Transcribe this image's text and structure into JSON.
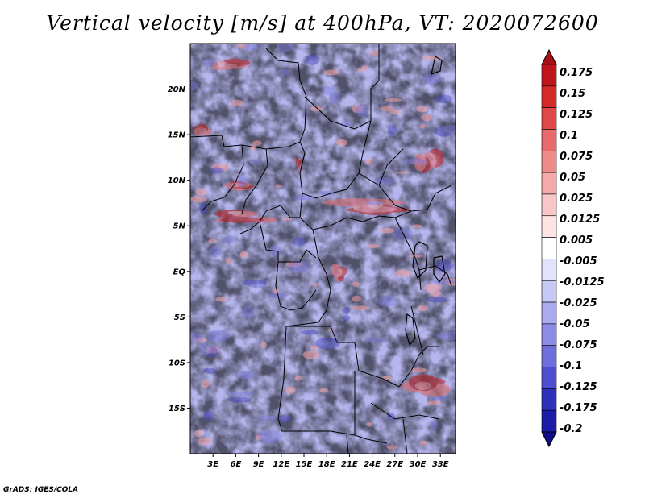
{
  "title": "Vertical velocity [m/s] at 400hPa, VT: 2020072600",
  "credit": "GrADS: IGES/COLA",
  "map": {
    "lat_labels": [
      "20N",
      "15N",
      "10N",
      "5N",
      "EQ",
      "5S",
      "10S",
      "15S"
    ],
    "lat_values": [
      20,
      15,
      10,
      5,
      0,
      -5,
      -10,
      -15
    ],
    "lon_labels": [
      "3E",
      "6E",
      "9E",
      "12E",
      "15E",
      "18E",
      "21E",
      "24E",
      "27E",
      "30E",
      "33E"
    ],
    "lon_values": [
      3,
      6,
      9,
      12,
      15,
      18,
      21,
      24,
      27,
      30,
      33
    ],
    "lon_range": [
      0,
      35
    ],
    "lat_range": [
      -20,
      25
    ]
  },
  "colorbar": {
    "labels": [
      "0.175",
      "0.15",
      "0.125",
      "0.1",
      "0.075",
      "0.05",
      "0.025",
      "0.0125",
      "0.005",
      "-0.005",
      "-0.0125",
      "-0.025",
      "-0.05",
      "-0.075",
      "-0.1",
      "-0.125",
      "-0.175",
      "-0.2"
    ],
    "colors": [
      "#a50f15",
      "#c0141c",
      "#d42a2a",
      "#e04848",
      "#e86a6a",
      "#ee8c8c",
      "#f4aaaa",
      "#f8c8c8",
      "#fce4e4",
      "#ffffff",
      "#e2e2fa",
      "#c8c8f4",
      "#aaaaee",
      "#8c8ce6",
      "#6e6edc",
      "#4e4ed0",
      "#3030be",
      "#1c1ca8",
      "#0e0e8c"
    ]
  }
}
